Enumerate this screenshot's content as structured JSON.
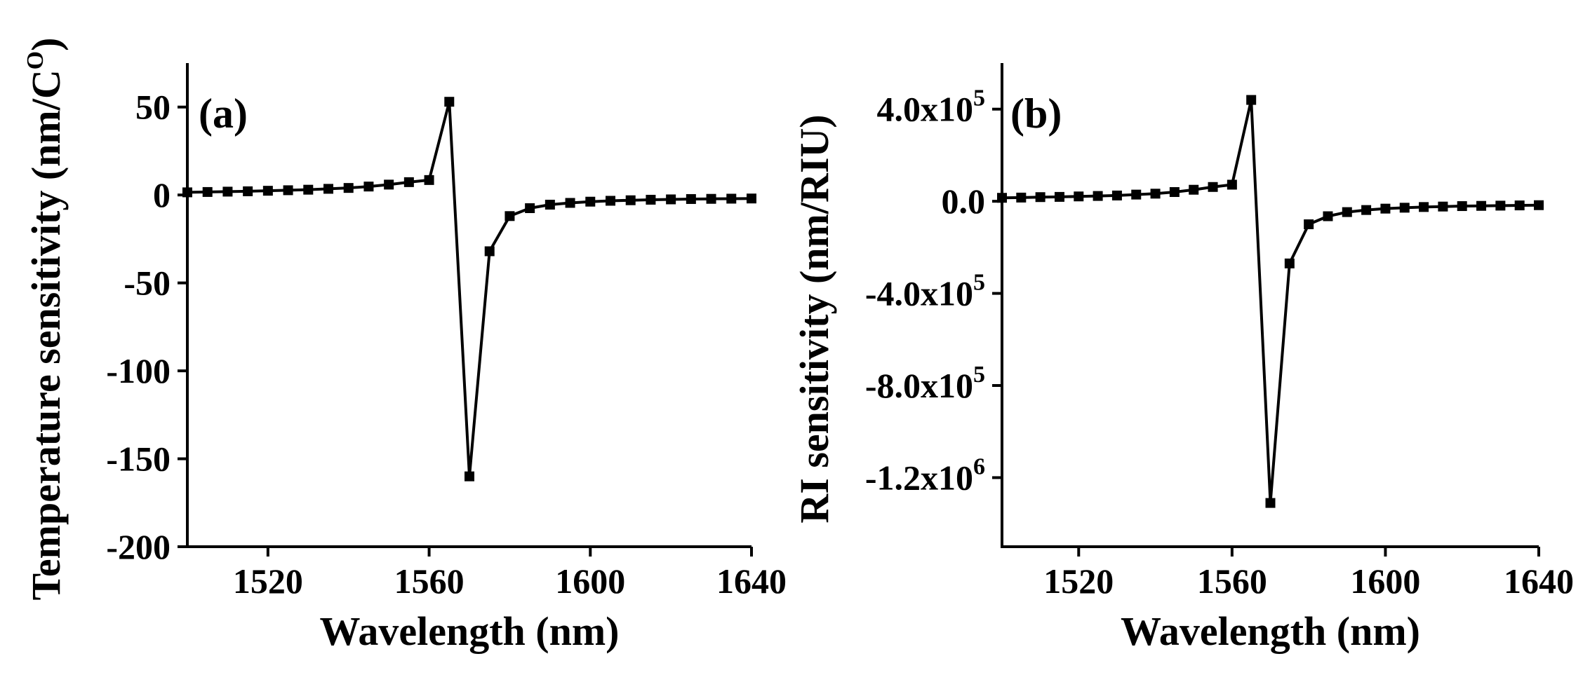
{
  "chart_data": [
    {
      "type": "line",
      "panel_label": "(a)",
      "xlabel": "Wavelength (nm)",
      "ylabel": "Temperature sensitivity (nm/C",
      "ylabel_sup": "O",
      "ylabel_close": ")",
      "xlim": [
        1500,
        1640
      ],
      "ylim": [
        -200,
        75
      ],
      "xticks": [
        1520,
        1560,
        1600,
        1640
      ],
      "yticks": [
        {
          "value": 50,
          "label": "50"
        },
        {
          "value": 0,
          "label": "0"
        },
        {
          "value": -50,
          "label": "-50"
        },
        {
          "value": -100,
          "label": "-100"
        },
        {
          "value": -150,
          "label": "-150"
        },
        {
          "value": -200,
          "label": "-200"
        }
      ],
      "series": [
        {
          "name": "Temperature sensitivity",
          "x": [
            1500,
            1505,
            1510,
            1515,
            1520,
            1525,
            1530,
            1535,
            1540,
            1545,
            1550,
            1555,
            1560,
            1565,
            1570,
            1575,
            1580,
            1585,
            1590,
            1595,
            1600,
            1605,
            1610,
            1615,
            1620,
            1625,
            1630,
            1635,
            1640
          ],
          "y": [
            1.5,
            1.7,
            1.9,
            2.1,
            2.4,
            2.7,
            3.0,
            3.5,
            4.0,
            4.8,
            5.9,
            7.3,
            8.5,
            53,
            -160,
            -32,
            -12,
            -7.5,
            -5.5,
            -4.5,
            -3.8,
            -3.3,
            -3.0,
            -2.7,
            -2.5,
            -2.3,
            -2.2,
            -2.1,
            -2.0
          ]
        }
      ]
    },
    {
      "type": "line",
      "panel_label": "(b)",
      "xlabel": "Wavelength (nm)",
      "ylabel": "RI sensitivity (nm/RIU)",
      "xlim": [
        1500,
        1640
      ],
      "ylim": [
        -1500000,
        600000
      ],
      "xticks": [
        1520,
        1560,
        1600,
        1640
      ],
      "yticks": [
        {
          "value": 400000,
          "mantissa": "4.0x10",
          "exp": "5"
        },
        {
          "value": 0,
          "mantissa": "0.0",
          "exp": ""
        },
        {
          "value": -400000,
          "mantissa": "-4.0x10",
          "exp": "5"
        },
        {
          "value": -800000,
          "mantissa": "-8.0x10",
          "exp": "5"
        },
        {
          "value": -1200000,
          "mantissa": "-1.2x10",
          "exp": "6"
        }
      ],
      "series": [
        {
          "name": "RI sensitivity",
          "x": [
            1500,
            1505,
            1510,
            1515,
            1520,
            1525,
            1530,
            1535,
            1540,
            1545,
            1550,
            1555,
            1560,
            1565,
            1570,
            1575,
            1580,
            1585,
            1590,
            1595,
            1600,
            1605,
            1610,
            1615,
            1620,
            1625,
            1630,
            1635,
            1640
          ],
          "y": [
            15000,
            16000,
            18000,
            19000,
            21000,
            23000,
            25000,
            29000,
            33000,
            40000,
            50000,
            62000,
            72000,
            440000,
            -1310000,
            -270000,
            -100000,
            -65000,
            -47000,
            -38000,
            -32000,
            -28000,
            -25000,
            -23000,
            -21000,
            -20000,
            -19000,
            -18000,
            -17000
          ]
        }
      ]
    }
  ]
}
